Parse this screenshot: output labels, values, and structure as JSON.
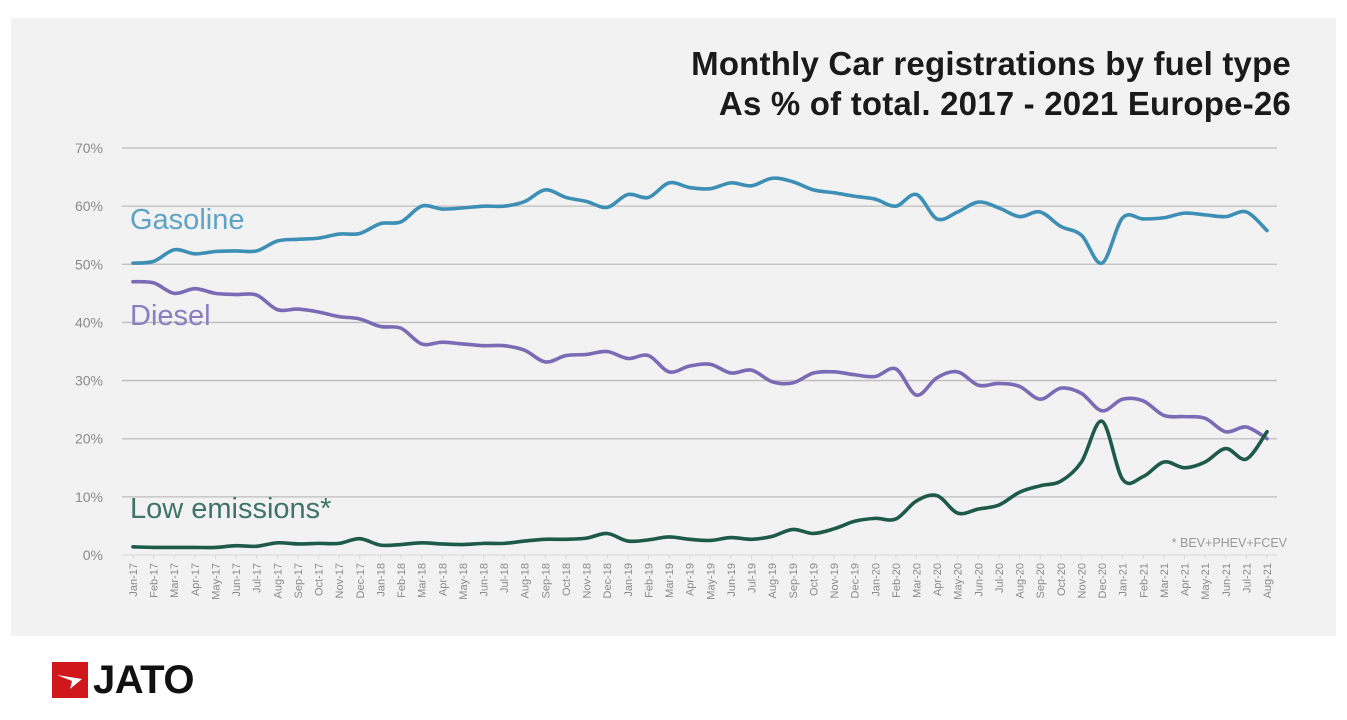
{
  "brand": {
    "name": "JATO",
    "accent": "#d0171b"
  },
  "chart_data": {
    "type": "line",
    "title": "Monthly Car registrations by fuel type",
    "subtitle": "As % of total. 2017 - 2021 Europe-26",
    "xlabel": "",
    "ylabel": "",
    "ylim": [
      0,
      70
    ],
    "yticks": [
      0,
      10,
      20,
      30,
      40,
      50,
      60,
      70
    ],
    "ytick_labels": [
      "0%",
      "10%",
      "20%",
      "30%",
      "40%",
      "50%",
      "60%",
      "70%"
    ],
    "grid": true,
    "legend": "inline-left",
    "footnote": "* BEV+PHEV+FCEV",
    "categories": [
      "Jan-17",
      "Feb-17",
      "Mar-17",
      "Apr-17",
      "May-17",
      "Jun-17",
      "Jul-17",
      "Aug-17",
      "Sep-17",
      "Oct-17",
      "Nov-17",
      "Dec-17",
      "Jan-18",
      "Feb-18",
      "Mar-18",
      "Apr-18",
      "May-18",
      "Jun-18",
      "Jul-18",
      "Aug-18",
      "Sep-18",
      "Oct-18",
      "Nov-18",
      "Dec-18",
      "Jan-19",
      "Feb-19",
      "Mar-19",
      "Apr-19",
      "May-19",
      "Jun-19",
      "Jul-19",
      "Aug-19",
      "Sep-19",
      "Oct-19",
      "Nov-19",
      "Dec-19",
      "Jan-20",
      "Feb-20",
      "Mar-20",
      "Apr-20",
      "May-20",
      "Jun-20",
      "Jul-20",
      "Aug-20",
      "Sep-20",
      "Oct-20",
      "Nov-20",
      "Dec-20",
      "Jan-21",
      "Feb-21",
      "Mar-21",
      "Apr-21",
      "May-21",
      "Jun-21",
      "Jul-21",
      "Aug-21"
    ],
    "series": [
      {
        "name": "Gasoline",
        "color": "#3d8fb5",
        "values": [
          50.2,
          50.5,
          52.5,
          51.8,
          52.2,
          52.3,
          52.3,
          54.0,
          54.3,
          54.5,
          55.2,
          55.3,
          57.0,
          57.3,
          60.0,
          59.5,
          59.7,
          60.0,
          60.0,
          60.8,
          62.8,
          61.5,
          60.8,
          59.8,
          62.0,
          61.5,
          64.0,
          63.2,
          63.0,
          64.0,
          63.5,
          64.8,
          64.2,
          62.8,
          62.3,
          61.7,
          61.2,
          60.0,
          62.0,
          57.8,
          59.0,
          60.7,
          59.7,
          58.2,
          59.0,
          56.5,
          55.0,
          50.2,
          58.0,
          57.8,
          58.0,
          58.8,
          58.5,
          58.2,
          59.0,
          55.8
        ]
      },
      {
        "name": "Diesel",
        "color": "#7b6bb5",
        "values": [
          47.0,
          46.8,
          45.0,
          45.8,
          45.0,
          44.8,
          44.7,
          42.2,
          42.3,
          41.8,
          41.0,
          40.6,
          39.3,
          39.0,
          36.3,
          36.6,
          36.3,
          36.0,
          36.0,
          35.2,
          33.2,
          34.3,
          34.5,
          35.0,
          33.8,
          34.3,
          31.5,
          32.5,
          32.8,
          31.3,
          31.8,
          29.8,
          29.6,
          31.3,
          31.5,
          31.0,
          30.7,
          32.0,
          27.5,
          30.5,
          31.5,
          29.2,
          29.5,
          29.0,
          26.8,
          28.7,
          27.8,
          24.8,
          26.8,
          26.5,
          24.0,
          23.8,
          23.5,
          21.2,
          22.0,
          20.0
        ]
      },
      {
        "name": "Low emissions*",
        "color": "#1d5a4a",
        "values": [
          1.4,
          1.3,
          1.3,
          1.3,
          1.3,
          1.6,
          1.5,
          2.1,
          1.9,
          2.0,
          2.0,
          2.8,
          1.7,
          1.8,
          2.1,
          1.9,
          1.8,
          2.0,
          2.0,
          2.4,
          2.7,
          2.7,
          2.9,
          3.7,
          2.4,
          2.6,
          3.1,
          2.7,
          2.5,
          3.0,
          2.7,
          3.2,
          4.4,
          3.7,
          4.5,
          5.8,
          6.3,
          6.2,
          9.3,
          10.2,
          7.2,
          7.9,
          8.6,
          10.8,
          11.9,
          12.7,
          16.0,
          23.0,
          13.0,
          13.5,
          16.0,
          15.0,
          16.0,
          18.3,
          16.5,
          21.2
        ]
      }
    ]
  }
}
